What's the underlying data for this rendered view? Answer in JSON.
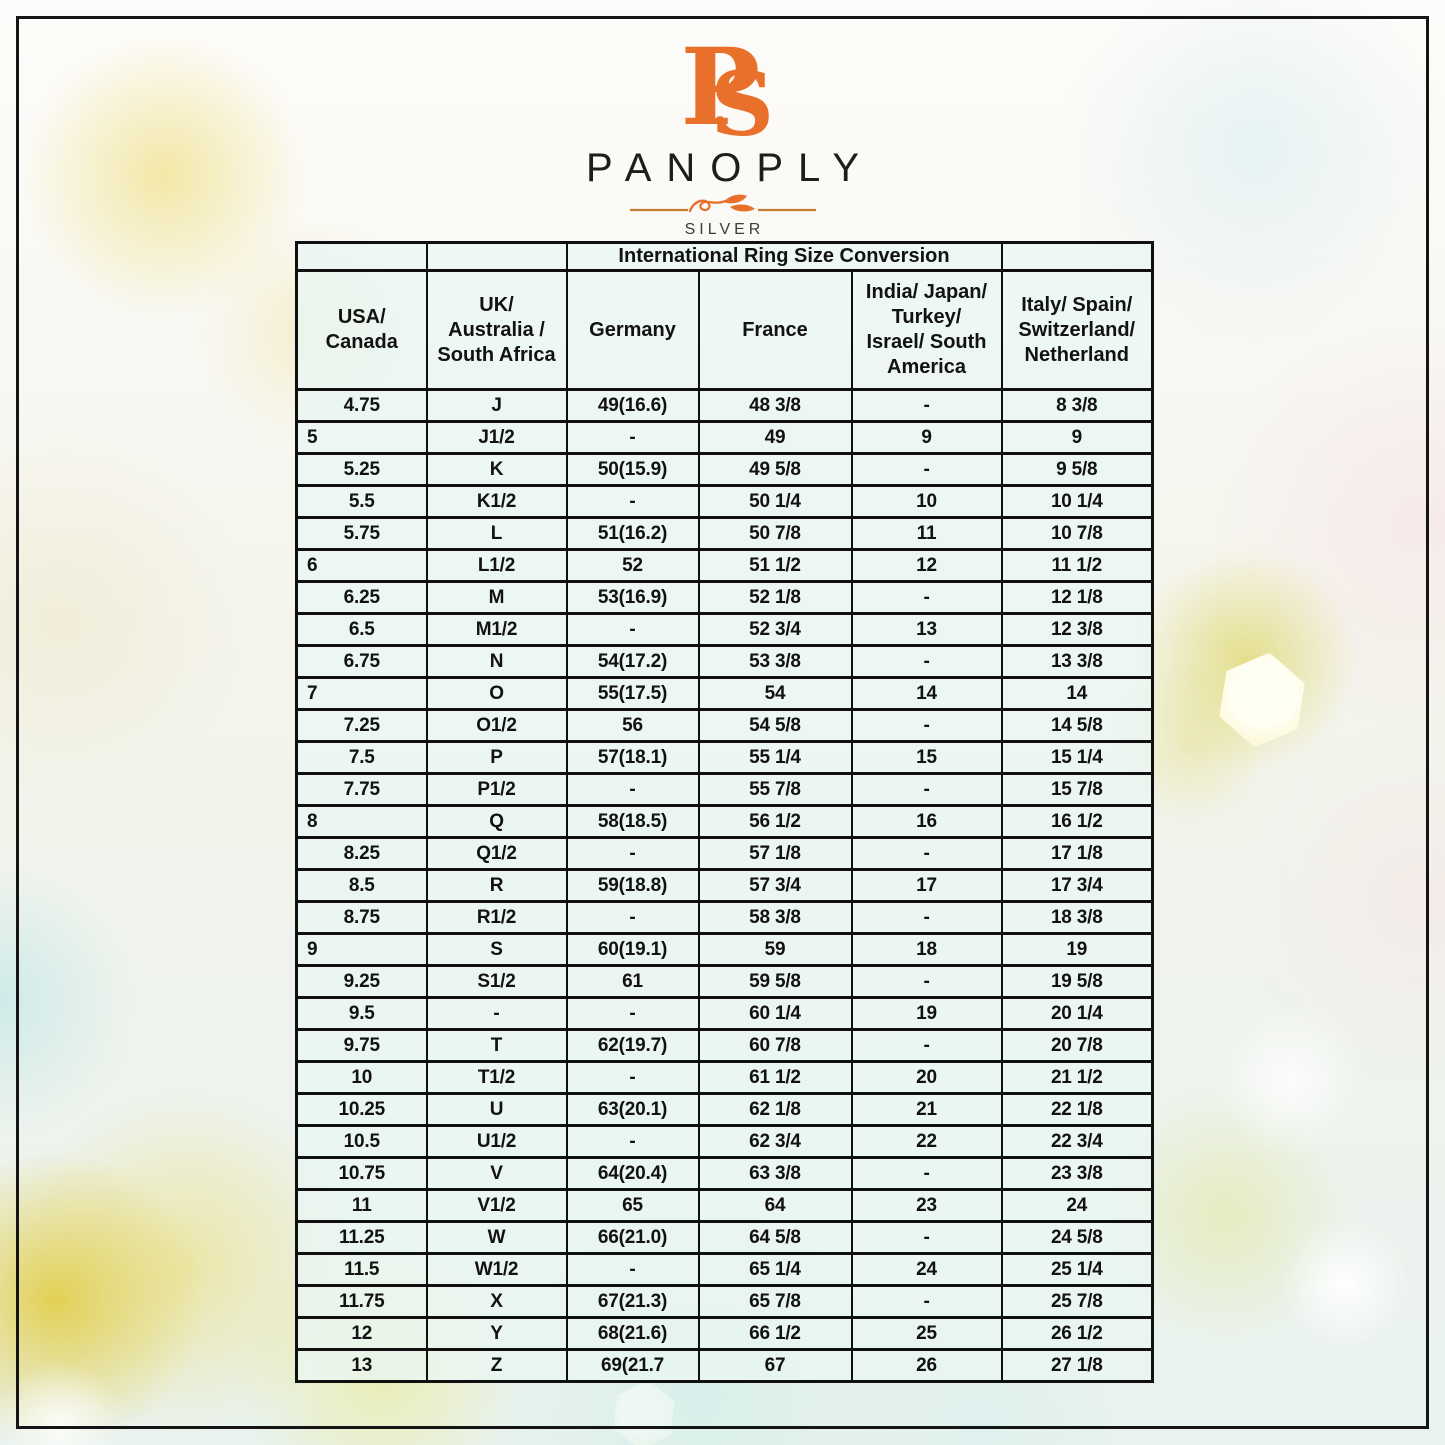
{
  "brand": {
    "monogram_p": "P",
    "monogram_s": "S",
    "name": "PANOPLY",
    "tagline": "SILVER"
  },
  "colors": {
    "accent_orange": "#E8702B",
    "divider_line": "#C67B35",
    "table_border": "#101010",
    "cell_tint": "#E9F6F3",
    "text": "#121212"
  },
  "table": {
    "title": "International Ring Size Conversion",
    "headers": [
      "USA/\nCanada",
      "UK/\nAustralia /\nSouth Africa",
      "Germany",
      "France",
      "India/ Japan/\nTurkey/\nIsrael/ South\nAmerica",
      "Italy/ Spain/\nSwitzerland/\nNetherland"
    ],
    "left_aligned_first_col": [
      "5",
      "6",
      "7",
      "8",
      "9"
    ],
    "rows": [
      [
        "4.75",
        "J",
        "49(16.6)",
        "48 3/8",
        "-",
        "8 3/8"
      ],
      [
        "5",
        "J1/2",
        "-",
        "49",
        "9",
        "9"
      ],
      [
        "5.25",
        "K",
        "50(15.9)",
        "49 5/8",
        "-",
        "9 5/8"
      ],
      [
        "5.5",
        "K1/2",
        "-",
        "50 1/4",
        "10",
        "10 1/4"
      ],
      [
        "5.75",
        "L",
        "51(16.2)",
        "50 7/8",
        "11",
        "10 7/8"
      ],
      [
        "6",
        "L1/2",
        "52",
        "51 1/2",
        "12",
        "11 1/2"
      ],
      [
        "6.25",
        "M",
        "53(16.9)",
        "52 1/8",
        "-",
        "12 1/8"
      ],
      [
        "6.5",
        "M1/2",
        "-",
        "52 3/4",
        "13",
        "12 3/8"
      ],
      [
        "6.75",
        "N",
        "54(17.2)",
        "53 3/8",
        "-",
        "13 3/8"
      ],
      [
        "7",
        "O",
        "55(17.5)",
        "54",
        "14",
        "14"
      ],
      [
        "7.25",
        "O1/2",
        "56",
        "54 5/8",
        "-",
        "14 5/8"
      ],
      [
        "7.5",
        "P",
        "57(18.1)",
        "55 1/4",
        "15",
        "15 1/4"
      ],
      [
        "7.75",
        "P1/2",
        "-",
        "55 7/8",
        "-",
        "15 7/8"
      ],
      [
        "8",
        "Q",
        "58(18.5)",
        "56 1/2",
        "16",
        "16 1/2"
      ],
      [
        "8.25",
        "Q1/2",
        "-",
        "57 1/8",
        "-",
        "17 1/8"
      ],
      [
        "8.5",
        "R",
        "59(18.8)",
        "57 3/4",
        "17",
        "17 3/4"
      ],
      [
        "8.75",
        "R1/2",
        "-",
        "58 3/8",
        "-",
        "18 3/8"
      ],
      [
        "9",
        "S",
        "60(19.1)",
        "59",
        "18",
        "19"
      ],
      [
        "9.25",
        "S1/2",
        "61",
        "59 5/8",
        "-",
        "19 5/8"
      ],
      [
        "9.5",
        "-",
        "-",
        "60 1/4",
        "19",
        "20 1/4"
      ],
      [
        "9.75",
        "T",
        "62(19.7)",
        "60 7/8",
        "-",
        "20 7/8"
      ],
      [
        "10",
        "T1/2",
        "-",
        "61 1/2",
        "20",
        "21 1/2"
      ],
      [
        "10.25",
        "U",
        "63(20.1)",
        "62 1/8",
        "21",
        "22 1/8"
      ],
      [
        "10.5",
        "U1/2",
        "-",
        "62 3/4",
        "22",
        "22 3/4"
      ],
      [
        "10.75",
        "V",
        "64(20.4)",
        "63 3/8",
        "-",
        "23 3/8"
      ],
      [
        "11",
        "V1/2",
        "65",
        "64",
        "23",
        "24"
      ],
      [
        "11.25",
        "W",
        "66(21.0)",
        "64 5/8",
        "-",
        "24 5/8"
      ],
      [
        "11.5",
        "W1/2",
        "-",
        "65 1/4",
        "24",
        "25 1/4"
      ],
      [
        "11.75",
        "X",
        "67(21.3)",
        "65 7/8",
        "-",
        "25 7/8"
      ],
      [
        "12",
        "Y",
        "68(21.6)",
        "66 1/2",
        "25",
        "26 1/2"
      ],
      [
        "13",
        "Z",
        "69(21.7",
        "67",
        "26",
        "27 1/8"
      ]
    ]
  }
}
